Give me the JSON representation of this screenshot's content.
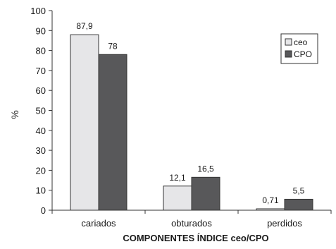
{
  "chart_data": {
    "type": "bar",
    "title": "",
    "categories": [
      "cariados",
      "obturados",
      "perdidos"
    ],
    "series": [
      {
        "name": "ceo",
        "values": [
          87.9,
          12.1,
          0.71
        ],
        "labels": [
          "87,9",
          "12,1",
          "0,71"
        ],
        "color": "#e6e6e8"
      },
      {
        "name": "CPO",
        "values": [
          78,
          16.5,
          5.5
        ],
        "labels": [
          "78",
          "16,5",
          "5,5"
        ],
        "color": "#58585a"
      }
    ],
    "xlabel": "COMPONENTES ÍNDICE ceo/CPO",
    "ylabel": "%",
    "ylim": [
      0,
      100
    ],
    "yticks": [
      0,
      10,
      20,
      30,
      40,
      50,
      60,
      70,
      80,
      90,
      100
    ],
    "grid": false,
    "legend_position": "top-right"
  }
}
